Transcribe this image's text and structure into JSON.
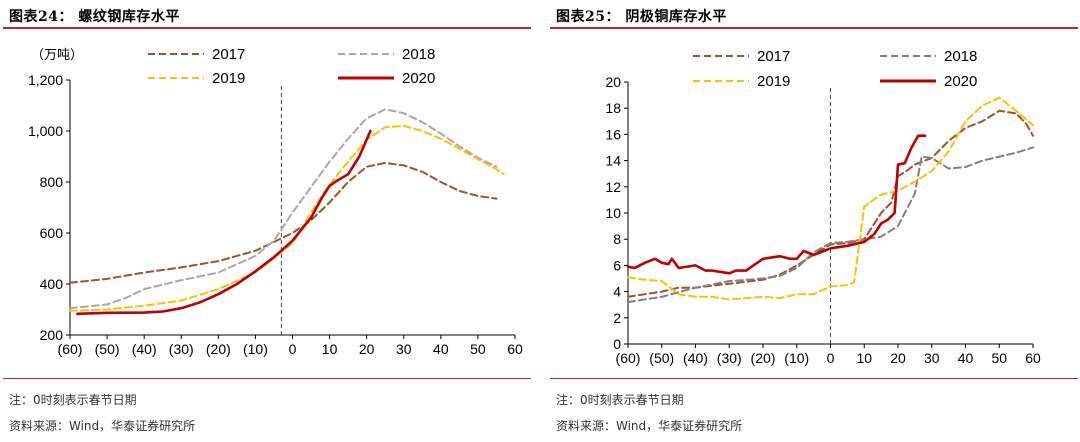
{
  "left": {
    "title": "图表24：   螺纹钢库存水平",
    "note": "注：0时刻表示春节日期",
    "source": "资料来源：Wind，华泰证券研究所",
    "chart_data": {
      "type": "line",
      "ylabel": "（万吨）",
      "xlim": [
        -60,
        60
      ],
      "ylim": [
        200,
        1200
      ],
      "y_ticks": [
        200,
        400,
        600,
        800,
        1000,
        1200
      ],
      "y_tick_labels": [
        "200",
        "400",
        "600",
        "800",
        "1,000",
        "1,200"
      ],
      "x_ticks": [
        -60,
        -50,
        -40,
        -30,
        -20,
        -10,
        0,
        10,
        20,
        30,
        40,
        50,
        60
      ],
      "x_tick_labels": [
        "(60)",
        "(50)",
        "(40)",
        "(30)",
        "(20)",
        "(10)",
        "0",
        "10",
        "20",
        "30",
        "40",
        "50",
        "60"
      ],
      "reference_line_x": -3,
      "legend_placement": "top",
      "series": [
        {
          "name": "2017",
          "color": "#a0522d",
          "style": "dash",
          "x": [
            -60,
            -50,
            -40,
            -30,
            -20,
            -10,
            0,
            5,
            10,
            15,
            20,
            25,
            30,
            35,
            40,
            45,
            50,
            55
          ],
          "y": [
            405,
            420,
            445,
            465,
            490,
            530,
            600,
            650,
            720,
            800,
            860,
            875,
            865,
            840,
            800,
            765,
            745,
            735
          ]
        },
        {
          "name": "2018",
          "color": "#a9a9a9",
          "style": "dash",
          "x": [
            -60,
            -50,
            -45,
            -40,
            -30,
            -20,
            -10,
            -5,
            0,
            5,
            10,
            15,
            20,
            25,
            30,
            35,
            40,
            45,
            50,
            55
          ],
          "y": [
            305,
            320,
            345,
            380,
            415,
            445,
            510,
            570,
            680,
            780,
            880,
            970,
            1050,
            1085,
            1070,
            1035,
            990,
            940,
            895,
            860
          ]
        },
        {
          "name": "2019",
          "color": "#ffc000",
          "style": "dash",
          "x": [
            -60,
            -50,
            -40,
            -30,
            -20,
            -10,
            0,
            5,
            10,
            15,
            20,
            25,
            30,
            35,
            40,
            45,
            50,
            55,
            57
          ],
          "y": [
            295,
            300,
            315,
            335,
            380,
            445,
            560,
            680,
            790,
            880,
            965,
            1015,
            1020,
            1000,
            970,
            930,
            890,
            850,
            830
          ]
        },
        {
          "name": "2020",
          "color": "#c00000",
          "style": "solid",
          "x": [
            -58,
            -50,
            -40,
            -35,
            -30,
            -25,
            -20,
            -15,
            -10,
            -5,
            0,
            5,
            8,
            10,
            12,
            15,
            18,
            21
          ],
          "y": [
            283,
            287,
            288,
            292,
            305,
            328,
            360,
            400,
            450,
            505,
            570,
            660,
            740,
            785,
            805,
            830,
            900,
            1000
          ]
        }
      ]
    }
  },
  "right": {
    "title": "图表25：   阴极铜库存水平",
    "note": "注：0时刻表示春节日期",
    "source": "资料来源：Wind，华泰证券研究所",
    "chart_data": {
      "type": "line",
      "xlim": [
        -60,
        60
      ],
      "ylim": [
        0,
        20
      ],
      "y_ticks": [
        0,
        2,
        4,
        6,
        8,
        10,
        12,
        14,
        16,
        18,
        20
      ],
      "y_tick_labels": [
        "0",
        "2",
        "4",
        "6",
        "8",
        "10",
        "12",
        "14",
        "16",
        "18",
        "20"
      ],
      "x_ticks": [
        -60,
        -50,
        -40,
        -30,
        -20,
        -10,
        0,
        10,
        20,
        30,
        40,
        50,
        60
      ],
      "x_tick_labels": [
        "(60)",
        "(50)",
        "(40)",
        "(30)",
        "(20)",
        "(10)",
        "0",
        "10",
        "20",
        "30",
        "40",
        "50",
        "60"
      ],
      "reference_line_x": 0,
      "legend_placement": "top",
      "series": [
        {
          "name": "2017",
          "color": "#a0522d",
          "style": "dash",
          "x": [
            -60,
            -50,
            -45,
            -40,
            -30,
            -20,
            -15,
            -10,
            -5,
            0,
            5,
            10,
            13,
            15,
            18,
            20,
            23,
            25,
            30,
            35,
            40,
            45,
            50,
            55,
            58,
            60
          ],
          "y": [
            3.6,
            4.0,
            4.3,
            4.3,
            4.6,
            4.9,
            5.3,
            6.0,
            6.8,
            7.6,
            7.7,
            8.0,
            9.2,
            10.0,
            10.8,
            12.8,
            13.3,
            13.7,
            14.2,
            15.5,
            16.5,
            17.0,
            17.8,
            17.6,
            16.8,
            15.9
          ]
        },
        {
          "name": "2018",
          "color": "#808080",
          "style": "dash",
          "x": [
            -60,
            -50,
            -40,
            -30,
            -20,
            -15,
            -10,
            -5,
            0,
            5,
            10,
            15,
            20,
            25,
            27,
            30,
            35,
            40,
            45,
            50,
            55,
            60
          ],
          "y": [
            3.2,
            3.6,
            4.3,
            4.8,
            5.0,
            5.2,
            5.8,
            7.0,
            7.7,
            7.8,
            8.0,
            8.2,
            9.0,
            11.5,
            14.3,
            14.2,
            13.4,
            13.5,
            14.0,
            14.3,
            14.6,
            15.0
          ]
        },
        {
          "name": "2019",
          "color": "#ffc000",
          "style": "dash",
          "x": [
            -60,
            -55,
            -50,
            -45,
            -40,
            -35,
            -30,
            -20,
            -15,
            -10,
            -5,
            0,
            5,
            7,
            10,
            15,
            20,
            25,
            30,
            35,
            40,
            45,
            50,
            55,
            60
          ],
          "y": [
            5.1,
            4.9,
            4.8,
            3.8,
            3.6,
            3.6,
            3.4,
            3.6,
            3.5,
            3.8,
            3.8,
            4.4,
            4.5,
            4.7,
            10.5,
            11.4,
            11.7,
            12.4,
            13.2,
            14.7,
            17.0,
            18.2,
            18.8,
            17.8,
            16.7
          ]
        },
        {
          "name": "2020",
          "color": "#c00000",
          "style": "solid",
          "x": [
            -60,
            -58,
            -55,
            -52,
            -50,
            -48,
            -47,
            -45,
            -40,
            -37,
            -35,
            -30,
            -28,
            -25,
            -20,
            -15,
            -12,
            -10,
            -8,
            -5,
            -2,
            0,
            5,
            10,
            13,
            15,
            17,
            19,
            20,
            22,
            24,
            26,
            28
          ],
          "y": [
            5.9,
            5.8,
            6.2,
            6.5,
            6.2,
            6.1,
            6.5,
            5.8,
            6.0,
            5.6,
            5.6,
            5.4,
            5.6,
            5.6,
            6.5,
            6.7,
            6.5,
            6.5,
            7.1,
            6.8,
            7.1,
            7.3,
            7.5,
            7.8,
            8.4,
            9.2,
            9.5,
            10.0,
            13.7,
            13.8,
            15.0,
            15.9,
            15.9
          ]
        }
      ]
    }
  }
}
